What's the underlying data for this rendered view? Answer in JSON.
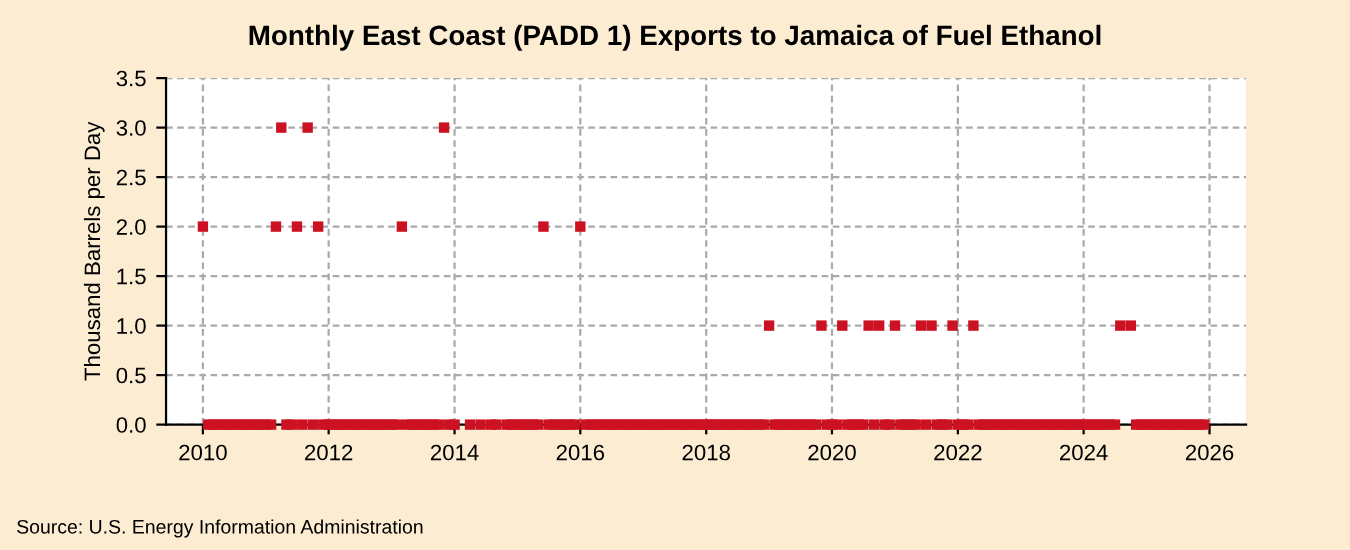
{
  "chart_data": {
    "type": "scatter",
    "title": "Monthly East Coast (PADD 1) Exports to Jamaica of Fuel Ethanol",
    "ylabel": "Thousand Barrels per Day",
    "annotations": [
      "Source: U.S. Energy Information Administration"
    ],
    "x": [
      "2010-01",
      "2010-02",
      "2010-03",
      "2010-04",
      "2010-05",
      "2010-06",
      "2010-07",
      "2010-08",
      "2010-09",
      "2010-10",
      "2010-11",
      "2010-12",
      "2011-01",
      "2011-02",
      "2011-03",
      "2011-04",
      "2011-05",
      "2011-06",
      "2011-07",
      "2011-08",
      "2011-09",
      "2011-10",
      "2011-11",
      "2011-12",
      "2012-01",
      "2012-02",
      "2012-03",
      "2012-04",
      "2012-05",
      "2012-06",
      "2012-07",
      "2012-08",
      "2012-09",
      "2012-10",
      "2012-11",
      "2012-12",
      "2013-01",
      "2013-02",
      "2013-03",
      "2013-04",
      "2013-05",
      "2013-06",
      "2013-07",
      "2013-08",
      "2013-09",
      "2013-10",
      "2013-11",
      "2013-12",
      "2014-01",
      "2014-02",
      "2014-03",
      "2014-04",
      "2014-05",
      "2014-06",
      "2014-07",
      "2014-08",
      "2014-09",
      "2014-10",
      "2014-11",
      "2014-12",
      "2015-01",
      "2015-02",
      "2015-03",
      "2015-04",
      "2015-05",
      "2015-06",
      "2015-07",
      "2015-08",
      "2015-09",
      "2015-10",
      "2015-11",
      "2015-12",
      "2016-01",
      "2016-02",
      "2016-03",
      "2016-04",
      "2016-05",
      "2016-06",
      "2016-07",
      "2016-08",
      "2016-09",
      "2016-10",
      "2016-11",
      "2016-12",
      "2017-01",
      "2017-02",
      "2017-03",
      "2017-04",
      "2017-05",
      "2017-06",
      "2017-07",
      "2017-08",
      "2017-09",
      "2017-10",
      "2017-11",
      "2017-12",
      "2018-01",
      "2018-02",
      "2018-03",
      "2018-04",
      "2018-05",
      "2018-06",
      "2018-07",
      "2018-08",
      "2018-09",
      "2018-10",
      "2018-11",
      "2018-12",
      "2019-01",
      "2019-02",
      "2019-03",
      "2019-04",
      "2019-05",
      "2019-06",
      "2019-07",
      "2019-08",
      "2019-09",
      "2019-10",
      "2019-11",
      "2019-12",
      "2020-01",
      "2020-02",
      "2020-03",
      "2020-04",
      "2020-05",
      "2020-06",
      "2020-07",
      "2020-08",
      "2020-09",
      "2020-10",
      "2020-11",
      "2020-12",
      "2021-01",
      "2021-02",
      "2021-03",
      "2021-04",
      "2021-05",
      "2021-06",
      "2021-07",
      "2021-08",
      "2021-09",
      "2021-10",
      "2021-11",
      "2021-12",
      "2022-01",
      "2022-02",
      "2022-03",
      "2022-04",
      "2022-05",
      "2022-06",
      "2022-07",
      "2022-08",
      "2022-09",
      "2022-10",
      "2022-11",
      "2022-12",
      "2023-01",
      "2023-02",
      "2023-03",
      "2023-04",
      "2023-05",
      "2023-06",
      "2023-07",
      "2023-08",
      "2023-09",
      "2023-10",
      "2023-11",
      "2023-12",
      "2024-01",
      "2024-02",
      "2024-03",
      "2024-04",
      "2024-05",
      "2024-06",
      "2024-07",
      "2024-08",
      "2024-09",
      "2024-10",
      "2024-11",
      "2024-12",
      "2025-01",
      "2025-02",
      "2025-03",
      "2025-04",
      "2025-05",
      "2025-06",
      "2025-07",
      "2025-08",
      "2025-09",
      "2025-10",
      "2025-11",
      "2025-12"
    ],
    "series": [
      {
        "color": "#cc1122",
        "values": [
          2,
          0,
          0,
          0,
          0,
          0,
          0,
          0,
          0,
          0,
          0,
          0,
          0,
          0,
          2,
          3,
          0,
          0,
          2,
          0,
          3,
          0,
          2,
          0,
          0,
          0,
          0,
          0,
          0,
          0,
          0,
          0,
          0,
          0,
          0,
          0,
          0,
          0,
          2,
          0,
          0,
          0,
          0,
          0,
          0,
          0,
          3,
          0,
          0,
          null,
          null,
          0,
          null,
          0,
          null,
          0,
          0,
          null,
          0,
          0,
          0,
          0,
          0,
          0,
          0,
          2,
          0,
          0,
          0,
          0,
          0,
          0,
          2,
          0,
          0,
          0,
          0,
          0,
          0,
          0,
          0,
          0,
          0,
          0,
          0,
          0,
          0,
          0,
          0,
          0,
          0,
          0,
          0,
          0,
          0,
          0,
          0,
          0,
          0,
          0,
          0,
          0,
          0,
          0,
          0,
          0,
          0,
          0,
          1,
          0,
          0,
          0,
          0,
          0,
          0,
          0,
          0,
          0,
          1,
          0,
          0,
          0,
          1,
          0,
          0,
          0,
          0,
          1,
          0,
          1,
          0,
          0,
          1,
          0,
          0,
          0,
          0,
          1,
          0,
          1,
          0,
          0,
          0,
          1,
          0,
          0,
          0,
          1,
          0,
          0,
          0,
          0,
          0,
          0,
          0,
          0,
          0,
          0,
          0,
          0,
          0,
          0,
          0,
          0,
          0,
          0,
          0,
          0,
          0,
          0,
          0,
          0,
          0,
          0,
          0,
          1,
          null,
          1,
          0,
          0,
          0,
          0,
          0,
          0,
          0,
          0,
          0,
          0,
          0,
          0,
          0,
          0
        ]
      }
    ],
    "xlim": [
      "2009-06",
      "2026-08"
    ],
    "xticks": [
      {
        "value": "2010",
        "label": "2010"
      },
      {
        "value": "2012",
        "label": "2012"
      },
      {
        "value": "2014",
        "label": "2014"
      },
      {
        "value": "2016",
        "label": "2016"
      },
      {
        "value": "2018",
        "label": "2018"
      },
      {
        "value": "2020",
        "label": "2020"
      },
      {
        "value": "2022",
        "label": "2022"
      },
      {
        "value": "2024",
        "label": "2024"
      },
      {
        "value": "2026",
        "label": "2026"
      }
    ],
    "ylim": [
      0,
      3.5
    ],
    "yticks": [
      {
        "value": 0,
        "label": "0.0"
      },
      {
        "value": 0.5,
        "label": "0.5"
      },
      {
        "value": 1,
        "label": "1.0"
      },
      {
        "value": 1.5,
        "label": "1.5"
      },
      {
        "value": 2,
        "label": "2.0"
      },
      {
        "value": 2.5,
        "label": "2.5"
      },
      {
        "value": 3,
        "label": "3.0"
      },
      {
        "value": 3.5,
        "label": "3.5"
      }
    ],
    "grid": true,
    "marker": "square"
  }
}
